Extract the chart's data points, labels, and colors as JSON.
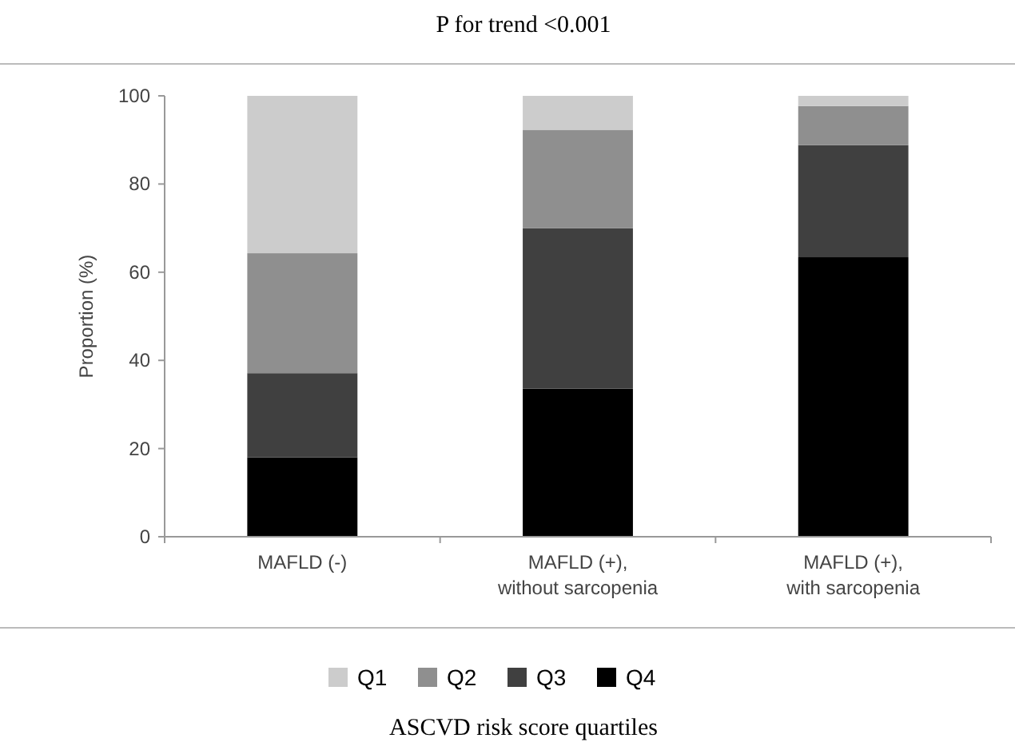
{
  "chart_data": {
    "type": "bar",
    "stacked": true,
    "title": "P for trend <0.001",
    "ylabel": "Proportion (%)",
    "legend_title": "ASCVD risk score quartiles",
    "legend": "bottom",
    "categories": [
      "MAFLD (-)",
      "MAFLD (+),\nwithout sarcopenia",
      "MAFLD (+),\nwith sarcopenia"
    ],
    "series": [
      {
        "name": "Q4",
        "color": "#000000",
        "values": [
          18,
          33.6,
          63.4
        ]
      },
      {
        "name": "Q3",
        "color": "#404040",
        "values": [
          19.1,
          36.4,
          25.4
        ]
      },
      {
        "name": "Q2",
        "color": "#8f8f8f",
        "values": [
          27.2,
          22.3,
          8.9
        ]
      },
      {
        "name": "Q1",
        "color": "#cccccc",
        "values": [
          35.7,
          7.7,
          2.3
        ]
      }
    ],
    "ylim": [
      0,
      100
    ],
    "yticks": [
      0,
      20,
      40,
      60,
      80,
      100
    ],
    "grid": false
  }
}
